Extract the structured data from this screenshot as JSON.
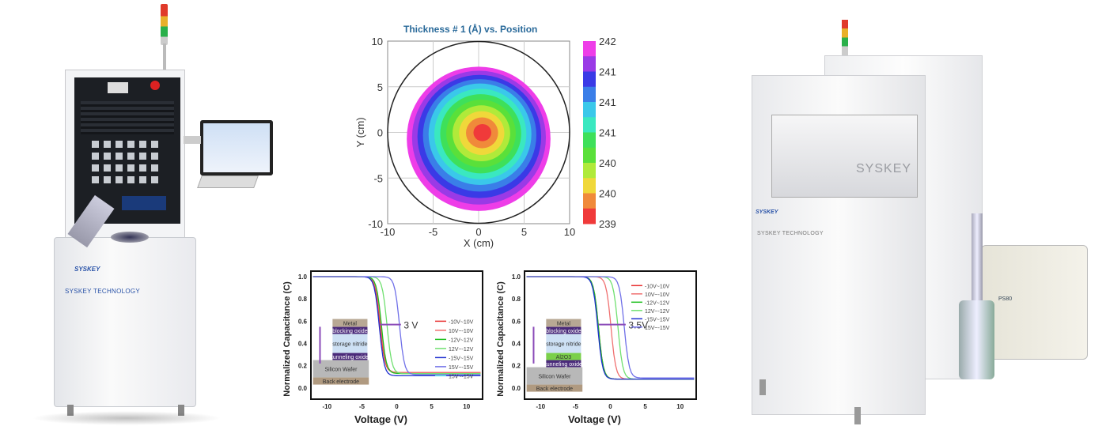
{
  "left_machine": {
    "brand_logo": "SYSKEY",
    "brand_label": "SYSKEY TECHNOLOGY"
  },
  "right_machine": {
    "brand_logo": "SYSKEY",
    "brand_label": "SYSKEY TECHNOLOGY",
    "chamber_label": "SYSKEY",
    "pump_label": "PS80"
  },
  "chart_data": [
    {
      "type": "heatmap",
      "title": "Thickness # 1 (Å) vs. Position",
      "xlabel": "X (cm)",
      "ylabel": "Y (cm)",
      "xlim": [
        -10,
        10
      ],
      "ylim": [
        -10,
        10
      ],
      "xticks": [
        "-10",
        "-5",
        "0",
        "5",
        "10"
      ],
      "yticks": [
        "10",
        "5",
        "0",
        "-5",
        "-10"
      ],
      "colorbar_labels": [
        "242.41",
        "241.94",
        "241.47",
        "241.01",
        "240.54",
        "240.08",
        "239.61"
      ],
      "levels": [
        {
          "min": 242.18,
          "color": "#ee3de8"
        },
        {
          "min": 241.94,
          "color": "#9a3ae6"
        },
        {
          "min": 241.7,
          "color": "#3a3ae6"
        },
        {
          "min": 241.47,
          "color": "#3a7ee8"
        },
        {
          "min": 241.24,
          "color": "#3ac8ea"
        },
        {
          "min": 241.01,
          "color": "#3ae8c0"
        },
        {
          "min": 240.77,
          "color": "#3ee05a"
        },
        {
          "min": 240.54,
          "color": "#5ae03a"
        },
        {
          "min": 240.31,
          "color": "#b0ea3a"
        },
        {
          "min": 240.08,
          "color": "#f0d83a"
        },
        {
          "min": 239.85,
          "color": "#f08a3a"
        },
        {
          "min": 239.61,
          "color": "#f03a3a"
        }
      ]
    },
    {
      "type": "line",
      "xlabel": "Voltage (V)",
      "ylabel": "Normalized Capacitance (C)",
      "xlim": [
        -12.3,
        12.3
      ],
      "ylim": [
        -0.1,
        1.05
      ],
      "xticks": [
        -10,
        -5,
        0,
        5,
        10
      ],
      "yticks": [
        0.0,
        0.2,
        0.4,
        0.6,
        0.8,
        1.0
      ],
      "annotation": "3 V",
      "stack_layers": [
        "Metal",
        "blocking oxide",
        "storage nitride",
        "tunneling oxide",
        "Silicon Wafer",
        "Back electrode"
      ],
      "series": [
        {
          "name": "-10V~10V",
          "color": "#e83030",
          "v_half": -2.4,
          "c_min": 0.14
        },
        {
          "name": "10V~-10V",
          "color": "#f07070",
          "v_half": -2.3,
          "c_min": 0.14
        },
        {
          "name": "-12V~12V",
          "color": "#20c020",
          "v_half": -2.2,
          "c_min": 0.13
        },
        {
          "name": "12V~-12V",
          "color": "#70e070",
          "v_half": -1.4,
          "c_min": 0.13
        },
        {
          "name": "-15V~15V",
          "color": "#2030d0",
          "v_half": -2.5,
          "c_min": 0.11
        },
        {
          "name": "15V~-15V",
          "color": "#7070e8",
          "v_half": 0.4,
          "c_min": 0.12
        },
        {
          "name": "15V~-15V",
          "color": "#60e0e8",
          "v_half": null,
          "c_min": null
        }
      ]
    },
    {
      "type": "line",
      "xlabel": "Voltage (V)",
      "ylabel": "Normalized Capacitance (C)",
      "xlim": [
        -12.3,
        12.3
      ],
      "ylim": [
        -0.1,
        1.05
      ],
      "xticks": [
        -10,
        -5,
        0,
        5,
        10
      ],
      "yticks": [
        0.0,
        0.2,
        0.4,
        0.6,
        0.8,
        1.0
      ],
      "annotation": "3.5V",
      "stack_layers": [
        "Metal",
        "blocking oxide",
        "storage nitride",
        "Al2O3",
        "tunneling oxide",
        "Silicon Wafer",
        "Back electrode"
      ],
      "series": [
        {
          "name": "-10V~10V",
          "color": "#e83030",
          "v_half": -1.7,
          "c_min": 0.08
        },
        {
          "name": "10V~-10V",
          "color": "#f07070",
          "v_half": 0.1,
          "c_min": 0.08
        },
        {
          "name": "-12V~12V",
          "color": "#20c020",
          "v_half": -1.7,
          "c_min": 0.08
        },
        {
          "name": "12V~-12V",
          "color": "#70e070",
          "v_half": 1.1,
          "c_min": 0.08
        },
        {
          "name": "-15V~15V",
          "color": "#2030d0",
          "v_half": -1.8,
          "c_min": 0.08
        },
        {
          "name": "15V~-15V",
          "color": "#7070e8",
          "v_half": 2.0,
          "c_min": 0.09
        }
      ]
    }
  ]
}
